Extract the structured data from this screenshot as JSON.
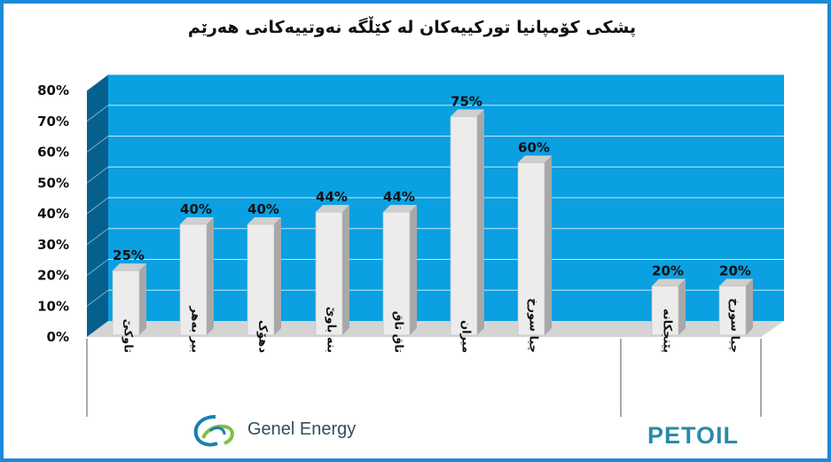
{
  "chart_data": {
    "type": "bar",
    "title": "پشکی کۆمپانیا تورکییەکان لە کێڵگە نەوتییەکانی هەرێم",
    "ylim": [
      0,
      80
    ],
    "yticks": [
      "0%",
      "10%",
      "20%",
      "30%",
      "40%",
      "50%",
      "60%",
      "70%",
      "80%"
    ],
    "grid": true,
    "groups": [
      {
        "brand": "Genel Energy",
        "categories": [
          "تاوکێ",
          "بیر بەهر",
          "دهۆک",
          "بنە باوێ",
          "تاق تاق",
          "میران",
          "چیا سورخ"
        ],
        "values": [
          25,
          40,
          40,
          44,
          44,
          75,
          60
        ],
        "labels": [
          "25%",
          "40%",
          "40%",
          "44%",
          "44%",
          "75%",
          "60%"
        ]
      },
      {
        "brand": "PETOIL",
        "categories": [
          "پێنجکانە",
          "چیا سورخ"
        ],
        "values": [
          20,
          20
        ],
        "labels": [
          "20%",
          "20%"
        ]
      }
    ],
    "colors": {
      "plot_bg": "#0aa0e2",
      "side_wall": "#06608e",
      "floor": "#d4d4d4",
      "bar_front": "#ececec",
      "bar_side": "#a8a8a8",
      "bar_top": "#cfcfcf",
      "frame": "#1e88d8"
    }
  },
  "branding": {
    "genel_icon": "genel-energy-swirl-logo",
    "petoil_icon": "petoil-logo"
  }
}
